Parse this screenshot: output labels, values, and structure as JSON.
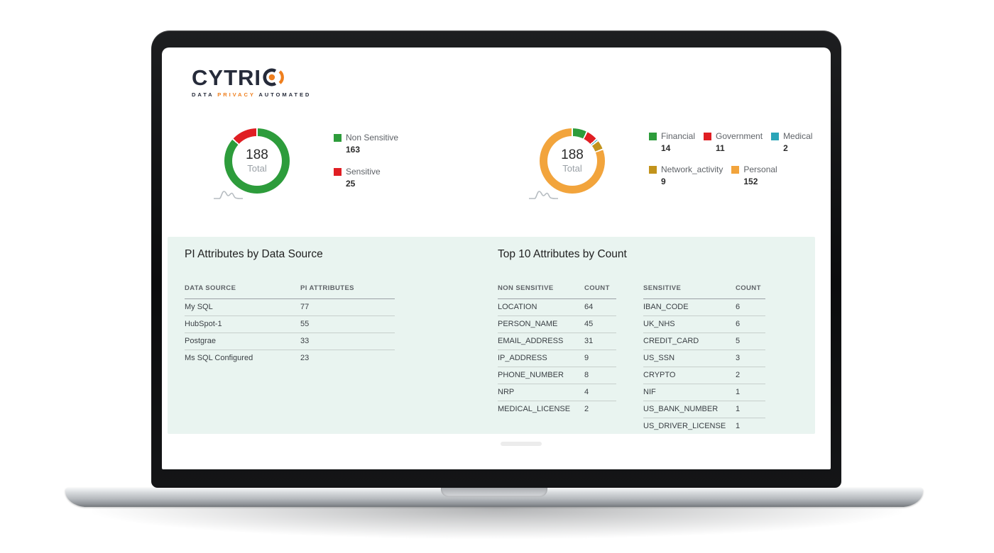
{
  "logo": {
    "brand": "CYTRI",
    "tagline": {
      "part1": "DATA",
      "part2": "PRIVACY",
      "part3": "AUTOMATED"
    },
    "navy": "#262B3A",
    "orange": "#EF7F1E"
  },
  "donut_sensitivity": {
    "total_value": "188",
    "total_label": "Total",
    "legend": [
      {
        "label": "Non Sensitive",
        "value": 163,
        "color": "#2D9C3B"
      },
      {
        "label": "Sensitive",
        "value": 25,
        "color": "#E01E23"
      }
    ]
  },
  "donut_categories": {
    "total_value": "188",
    "total_label": "Total",
    "legend": [
      {
        "label": "Financial",
        "value": 14,
        "color": "#2D9C3B"
      },
      {
        "label": "Government",
        "value": 11,
        "color": "#E01E23"
      },
      {
        "label": "Medical",
        "value": 2,
        "color": "#2AA5B8"
      },
      {
        "label": "Network_activity",
        "value": 9,
        "color": "#C2931C"
      },
      {
        "label": "Personal",
        "value": 152,
        "color": "#F2A43C"
      }
    ]
  },
  "panel": {
    "bg": "#E9F4F0",
    "left": {
      "title": "PI Attributes by Data Source",
      "headers": [
        "DATA SOURCE",
        "PI ATTRIBUTES"
      ],
      "rows": [
        [
          "My SQL",
          "77"
        ],
        [
          "HubSpot-1",
          "55"
        ],
        [
          "Postgrae",
          "33"
        ],
        [
          "Ms SQL Configured",
          "23"
        ]
      ]
    },
    "right": {
      "title": "Top 10 Attributes by Count",
      "non_sensitive": {
        "headers": [
          "NON SENSITIVE",
          "COUNT"
        ],
        "rows": [
          [
            "LOCATION",
            "64"
          ],
          [
            "PERSON_NAME",
            "45"
          ],
          [
            "EMAIL_ADDRESS",
            "31"
          ],
          [
            "IP_ADDRESS",
            "9"
          ],
          [
            "PHONE_NUMBER",
            "8"
          ],
          [
            "NRP",
            "4"
          ],
          [
            "MEDICAL_LICENSE",
            "2"
          ]
        ]
      },
      "sensitive": {
        "headers": [
          "SENSITIVE",
          "COUNT"
        ],
        "rows": [
          [
            "IBAN_CODE",
            "6"
          ],
          [
            "UK_NHS",
            "6"
          ],
          [
            "CREDIT_CARD",
            "5"
          ],
          [
            "US_SSN",
            "3"
          ],
          [
            "CRYPTO",
            "2"
          ],
          [
            "NIF",
            "1"
          ],
          [
            "US_BANK_NUMBER",
            "1"
          ],
          [
            "US_DRIVER_LICENSE",
            "1"
          ]
        ]
      }
    }
  },
  "chart_data": [
    {
      "type": "pie",
      "variant": "donut",
      "title": "",
      "center_value": 188,
      "center_label": "Total",
      "labels": [
        "Non Sensitive",
        "Sensitive"
      ],
      "values": [
        163,
        25
      ],
      "colors": [
        "#2D9C3B",
        "#E01E23"
      ],
      "legend_position": "right"
    },
    {
      "type": "pie",
      "variant": "donut",
      "title": "",
      "center_value": 188,
      "center_label": "Total",
      "labels": [
        "Financial",
        "Government",
        "Medical",
        "Network_activity",
        "Personal"
      ],
      "values": [
        14,
        11,
        2,
        9,
        152
      ],
      "colors": [
        "#2D9C3B",
        "#E01E23",
        "#2AA5B8",
        "#C2931C",
        "#F2A43C"
      ],
      "legend_position": "right"
    },
    {
      "type": "table",
      "title": "PI Attributes by Data Source",
      "columns": [
        "DATA SOURCE",
        "PI ATTRIBUTES"
      ],
      "rows": [
        [
          "My SQL",
          77
        ],
        [
          "HubSpot-1",
          55
        ],
        [
          "Postgrae",
          33
        ],
        [
          "Ms SQL Configured",
          23
        ]
      ]
    },
    {
      "type": "table",
      "title": "Top 10 Attributes by Count — Non Sensitive",
      "columns": [
        "NON SENSITIVE",
        "COUNT"
      ],
      "rows": [
        [
          "LOCATION",
          64
        ],
        [
          "PERSON_NAME",
          45
        ],
        [
          "EMAIL_ADDRESS",
          31
        ],
        [
          "IP_ADDRESS",
          9
        ],
        [
          "PHONE_NUMBER",
          8
        ],
        [
          "NRP",
          4
        ],
        [
          "MEDICAL_LICENSE",
          2
        ]
      ]
    },
    {
      "type": "table",
      "title": "Top 10 Attributes by Count — Sensitive",
      "columns": [
        "SENSITIVE",
        "COUNT"
      ],
      "rows": [
        [
          "IBAN_CODE",
          6
        ],
        [
          "UK_NHS",
          6
        ],
        [
          "CREDIT_CARD",
          5
        ],
        [
          "US_SSN",
          3
        ],
        [
          "CRYPTO",
          2
        ],
        [
          "NIF",
          1
        ],
        [
          "US_BANK_NUMBER",
          1
        ],
        [
          "US_DRIVER_LICENSE",
          1
        ]
      ]
    }
  ]
}
